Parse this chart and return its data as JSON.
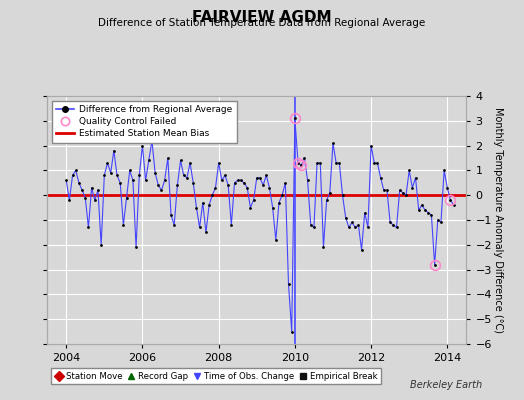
{
  "title": "FAIRVIEW AGDM",
  "subtitle": "Difference of Station Temperature Data from Regional Average",
  "ylabel": "Monthly Temperature Anomaly Difference (°C)",
  "xlabel_bottom": "Berkeley Earth",
  "ylim": [
    -6,
    4
  ],
  "xlim": [
    2003.5,
    2014.5
  ],
  "xticks": [
    2004,
    2006,
    2008,
    2010,
    2012,
    2014
  ],
  "yticks": [
    -6,
    -5,
    -4,
    -3,
    -2,
    -1,
    0,
    1,
    2,
    3,
    4
  ],
  "background_color": "#d8d8d8",
  "plot_bg_color": "#d8d8d8",
  "grid_color": "#ffffff",
  "line_color": "#4444ff",
  "marker_color": "#000000",
  "bias_color": "#dd0000",
  "bias_value": 0.0,
  "obs_change_year": 2010.0,
  "time_series": [
    [
      2004.0,
      0.6
    ],
    [
      2004.083,
      -0.2
    ],
    [
      2004.167,
      0.8
    ],
    [
      2004.25,
      1.0
    ],
    [
      2004.333,
      0.5
    ],
    [
      2004.417,
      0.2
    ],
    [
      2004.5,
      -0.1
    ],
    [
      2004.583,
      -1.3
    ],
    [
      2004.667,
      0.3
    ],
    [
      2004.75,
      -0.2
    ],
    [
      2004.833,
      0.2
    ],
    [
      2004.917,
      -2.0
    ],
    [
      2005.0,
      0.8
    ],
    [
      2005.083,
      1.3
    ],
    [
      2005.167,
      0.9
    ],
    [
      2005.25,
      1.8
    ],
    [
      2005.333,
      0.8
    ],
    [
      2005.417,
      0.5
    ],
    [
      2005.5,
      -1.2
    ],
    [
      2005.583,
      -0.1
    ],
    [
      2005.667,
      1.0
    ],
    [
      2005.75,
      0.6
    ],
    [
      2005.833,
      -2.1
    ],
    [
      2005.917,
      0.8
    ],
    [
      2006.0,
      2.0
    ],
    [
      2006.083,
      0.6
    ],
    [
      2006.167,
      1.4
    ],
    [
      2006.25,
      2.2
    ],
    [
      2006.333,
      0.9
    ],
    [
      2006.417,
      0.4
    ],
    [
      2006.5,
      0.2
    ],
    [
      2006.583,
      0.6
    ],
    [
      2006.667,
      1.5
    ],
    [
      2006.75,
      -0.8
    ],
    [
      2006.833,
      -1.2
    ],
    [
      2006.917,
      0.4
    ],
    [
      2007.0,
      1.4
    ],
    [
      2007.083,
      0.8
    ],
    [
      2007.167,
      0.7
    ],
    [
      2007.25,
      1.3
    ],
    [
      2007.333,
      0.5
    ],
    [
      2007.417,
      -0.5
    ],
    [
      2007.5,
      -1.3
    ],
    [
      2007.583,
      -0.3
    ],
    [
      2007.667,
      -1.5
    ],
    [
      2007.75,
      -0.4
    ],
    [
      2007.833,
      0.0
    ],
    [
      2007.917,
      0.3
    ],
    [
      2008.0,
      1.3
    ],
    [
      2008.083,
      0.6
    ],
    [
      2008.167,
      0.8
    ],
    [
      2008.25,
      0.4
    ],
    [
      2008.333,
      -1.2
    ],
    [
      2008.417,
      0.5
    ],
    [
      2008.5,
      0.6
    ],
    [
      2008.583,
      0.6
    ],
    [
      2008.667,
      0.5
    ],
    [
      2008.75,
      0.3
    ],
    [
      2008.833,
      -0.5
    ],
    [
      2008.917,
      -0.2
    ],
    [
      2009.0,
      0.7
    ],
    [
      2009.083,
      0.7
    ],
    [
      2009.167,
      0.4
    ],
    [
      2009.25,
      0.8
    ],
    [
      2009.333,
      0.3
    ],
    [
      2009.417,
      -0.5
    ],
    [
      2009.5,
      -1.8
    ],
    [
      2009.583,
      -0.3
    ],
    [
      2009.667,
      0.0
    ],
    [
      2009.75,
      0.5
    ],
    [
      2009.833,
      -3.6
    ],
    [
      2009.917,
      -5.5
    ],
    [
      2010.0,
      3.1
    ],
    [
      2010.083,
      1.3
    ],
    [
      2010.167,
      1.2
    ],
    [
      2010.25,
      1.5
    ],
    [
      2010.333,
      0.6
    ],
    [
      2010.417,
      -1.2
    ],
    [
      2010.5,
      -1.3
    ],
    [
      2010.583,
      1.3
    ],
    [
      2010.667,
      1.3
    ],
    [
      2010.75,
      -2.1
    ],
    [
      2010.833,
      -0.2
    ],
    [
      2010.917,
      0.1
    ],
    [
      2011.0,
      2.1
    ],
    [
      2011.083,
      1.3
    ],
    [
      2011.167,
      1.3
    ],
    [
      2011.25,
      0.0
    ],
    [
      2011.333,
      -0.9
    ],
    [
      2011.417,
      -1.3
    ],
    [
      2011.5,
      -1.1
    ],
    [
      2011.583,
      -1.3
    ],
    [
      2011.667,
      -1.2
    ],
    [
      2011.75,
      -2.2
    ],
    [
      2011.833,
      -0.7
    ],
    [
      2011.917,
      -1.3
    ],
    [
      2012.0,
      2.0
    ],
    [
      2012.083,
      1.3
    ],
    [
      2012.167,
      1.3
    ],
    [
      2012.25,
      0.7
    ],
    [
      2012.333,
      0.2
    ],
    [
      2012.417,
      0.2
    ],
    [
      2012.5,
      -1.1
    ],
    [
      2012.583,
      -1.2
    ],
    [
      2012.667,
      -1.3
    ],
    [
      2012.75,
      0.2
    ],
    [
      2012.833,
      0.1
    ],
    [
      2012.917,
      0.0
    ],
    [
      2013.0,
      1.0
    ],
    [
      2013.083,
      0.3
    ],
    [
      2013.167,
      0.7
    ],
    [
      2013.25,
      -0.6
    ],
    [
      2013.333,
      -0.4
    ],
    [
      2013.417,
      -0.6
    ],
    [
      2013.5,
      -0.7
    ],
    [
      2013.583,
      -0.8
    ],
    [
      2013.667,
      -2.8
    ],
    [
      2013.75,
      -1.0
    ],
    [
      2013.833,
      -1.1
    ],
    [
      2013.917,
      1.0
    ],
    [
      2014.0,
      0.3
    ],
    [
      2014.083,
      -0.2
    ],
    [
      2014.167,
      -0.4
    ]
  ],
  "qc_failed_points": [
    [
      2010.0,
      3.1
    ],
    [
      2010.083,
      1.3
    ],
    [
      2010.167,
      1.2
    ],
    [
      2013.667,
      -2.8
    ],
    [
      2014.083,
      -0.2
    ]
  ],
  "legend1_items": [
    {
      "label": "Difference from Regional Average",
      "color": "#4444ff",
      "marker": "o",
      "markercolor": "#000000"
    },
    {
      "label": "Quality Control Failed",
      "markercolor": "#ff88cc"
    },
    {
      "label": "Estimated Station Mean Bias",
      "color": "#dd0000"
    }
  ],
  "legend2_items": [
    {
      "label": "Station Move",
      "marker": "D",
      "color": "#cc0000"
    },
    {
      "label": "Record Gap",
      "marker": "^",
      "color": "#006600"
    },
    {
      "label": "Time of Obs. Change",
      "marker": "v",
      "color": "#4444ff"
    },
    {
      "label": "Empirical Break",
      "marker": "s",
      "color": "#111111"
    }
  ]
}
